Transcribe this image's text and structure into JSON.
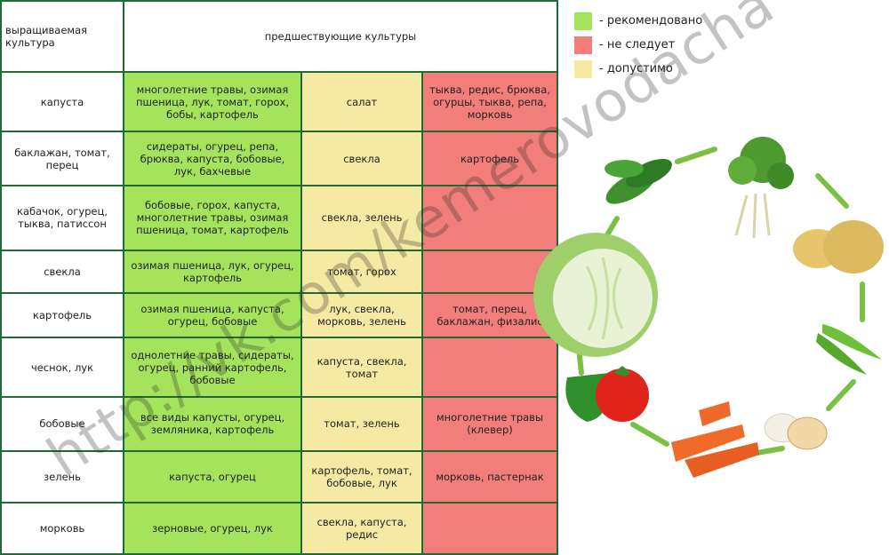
{
  "header": {
    "crop_col": "выращиваемая\nкультура",
    "prev_col": "предшествующие культуры"
  },
  "legend": [
    {
      "label": "- рекомендовано",
      "color": "#a5e35d"
    },
    {
      "label": "- не следует",
      "color": "#f27e7b"
    },
    {
      "label": "- допустимо",
      "color": "#f5e9a3"
    }
  ],
  "rows": [
    {
      "crop": "капуста",
      "good": "многолетние травы, озимая пшеница, лук, томат, горох, бобы, картофель",
      "ok": "салат",
      "bad": "тыква, редис, брюква, огурцы, тыква, репа, морковь"
    },
    {
      "crop": "баклажан, томат, перец",
      "good": "сидераты, огурец, репа, брюква, капуста, бобовые, лук, бахчевые",
      "ok": "свекла",
      "bad": "картофель"
    },
    {
      "crop": "кабачок, огурец, тыква, патиссон",
      "good": "бобовые, горох, капуста, многолетние травы, озимая пшеница, томат, картофель",
      "ok": "свекла, зелень",
      "bad": ""
    },
    {
      "crop": "свекла",
      "good": "озимая пшеница,  лук, огурец, картофель",
      "ok": "томат, горох",
      "bad": ""
    },
    {
      "crop": "картофель",
      "good": "озимая пшеница,  капуста, огурец, бобовые",
      "ok": "лук, свекла, морковь, зелень",
      "bad": "томат, перец, баклажан, физалис"
    },
    {
      "crop": "чеснок, лук",
      "good": "однолетние травы, сидераты, огурец, ранний картофель, бобовые",
      "ok": "капуста, свекла, томат",
      "bad": ""
    },
    {
      "crop": "бобовые",
      "good": "все виды капусты, огурец, земляника, картофель",
      "ok": "томат, зелень",
      "bad": "многолетние травы (клевер)"
    },
    {
      "crop": "зелень",
      "good": "капуста, огурец",
      "ok": "картофель, томат, бобовые, лук",
      "bad": "морковь, пастернак"
    },
    {
      "crop": "морковь",
      "good": "зерновые, огурец, лук",
      "ok": "свекла, капуста, редис",
      "bad": ""
    }
  ],
  "watermark": "http://vk.com/kemerovodacha",
  "illustration": {
    "items": [
      "cucumber-icon",
      "parsley-icon",
      "potato-icon",
      "peas-icon",
      "garlic-onion-icon",
      "carrot-icon",
      "tomato-pepper-icon",
      "cabbage-icon"
    ]
  }
}
